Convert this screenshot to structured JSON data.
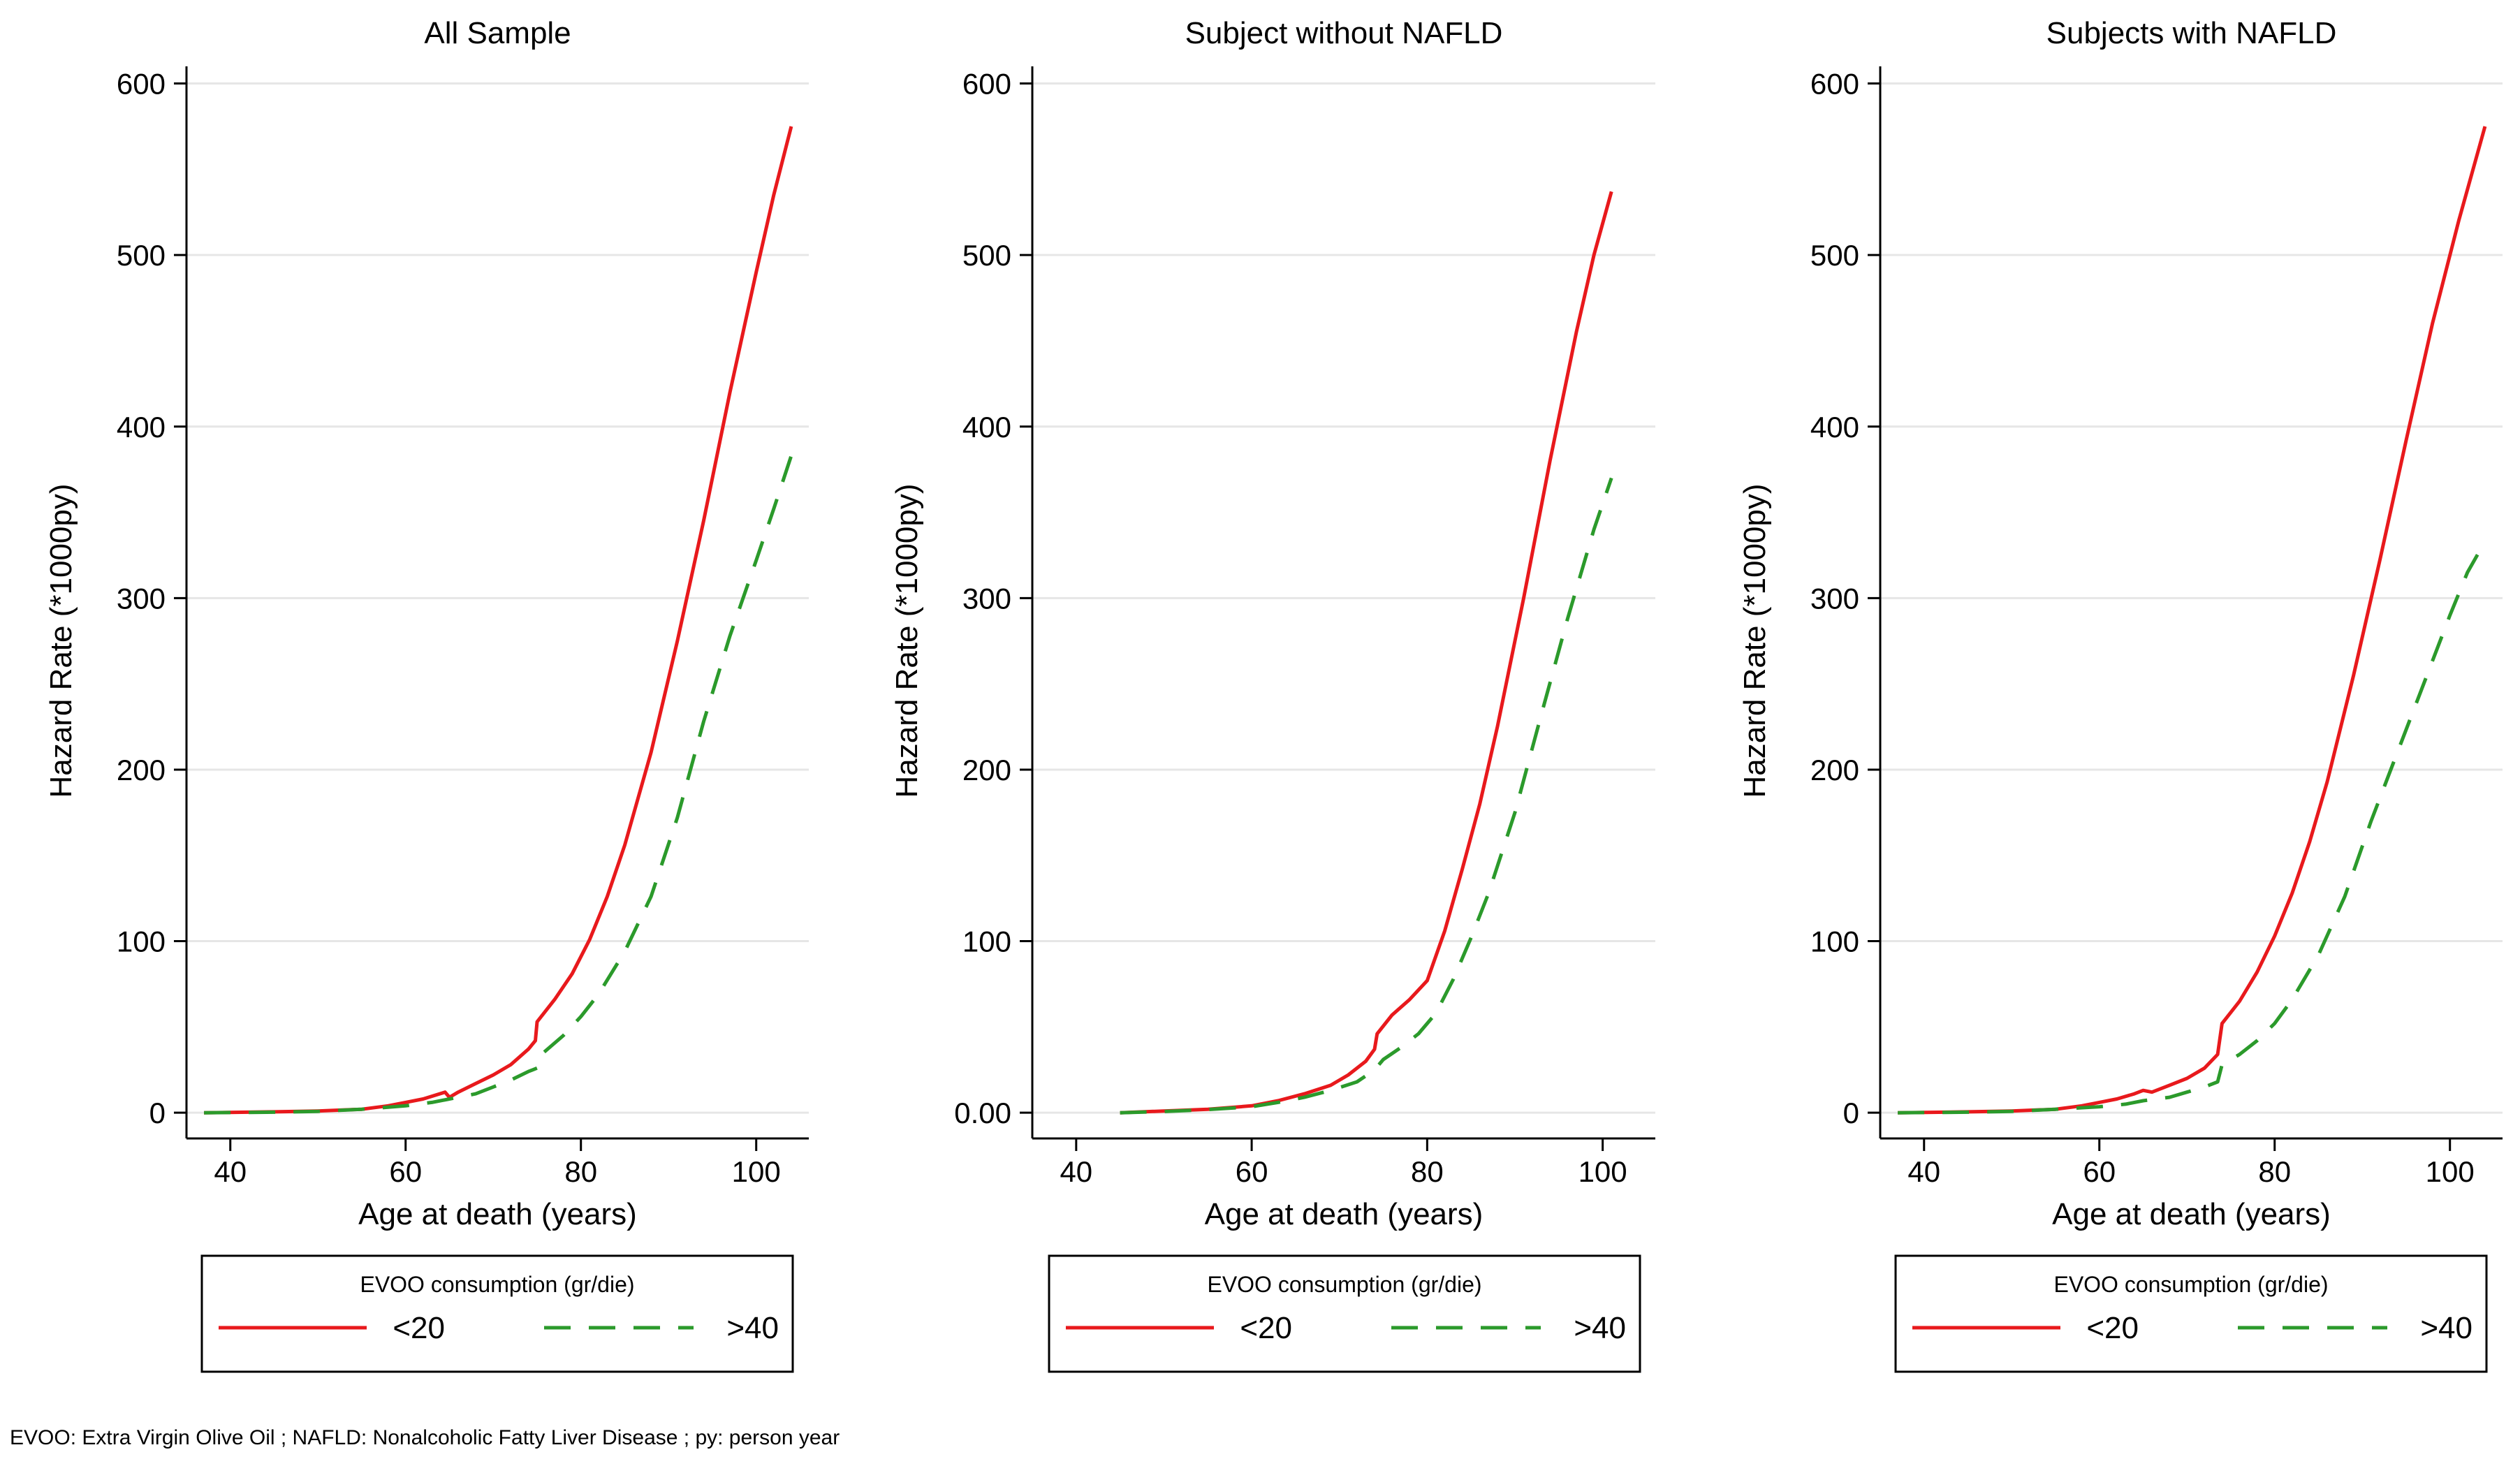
{
  "footnote": "EVOO: Extra Virgin Olive Oil ; NAFLD: Nonalcoholic Fatty Liver Disease ; py: person year",
  "colors": {
    "lt20": "#e8191c",
    "gt40": "#2b9a2b",
    "grid": "#e6e6e6",
    "axis": "#000000"
  },
  "chart_data": [
    {
      "type": "line",
      "title": "All Sample",
      "xlabel": "Age at death (years)",
      "ylabel": "Hazard Rate (*1000py)",
      "xlim": [
        35,
        106
      ],
      "ylim": [
        -15,
        610
      ],
      "xticks": [
        40,
        60,
        80,
        100
      ],
      "xtick_labels": [
        "40",
        "60",
        "80",
        "100"
      ],
      "yticks": [
        0,
        100,
        200,
        300,
        400,
        500,
        600
      ],
      "ytick_labels": [
        "0",
        "100",
        "200",
        "300",
        "400",
        "500",
        "600"
      ],
      "grid": true,
      "legend": {
        "title": "EVOO consumption (gr/die)",
        "position": "bottom"
      },
      "series": [
        {
          "name": "<20",
          "style": "solid",
          "x": [
            37,
            45,
            50,
            55,
            58,
            60,
            62,
            64.5,
            65,
            66,
            68,
            70,
            72,
            74,
            74.8,
            75,
            77,
            79,
            81,
            83,
            85,
            88,
            91,
            94,
            97,
            100,
            102,
            104
          ],
          "y": [
            0,
            0.5,
            1,
            2,
            4,
            6,
            8,
            12,
            9,
            12,
            17,
            22,
            28,
            37,
            42,
            53,
            66,
            81,
            101,
            126,
            156,
            210,
            275,
            345,
            420,
            490,
            535,
            575
          ]
        },
        {
          "name": ">40",
          "style": "dashed",
          "x": [
            37,
            45,
            50,
            55,
            60,
            63,
            65,
            68,
            70,
            72,
            74,
            75,
            75.5,
            78,
            80,
            82,
            85,
            88,
            91,
            94,
            97,
            100,
            102,
            104
          ],
          "y": [
            0,
            0.3,
            0.8,
            2,
            4,
            6,
            8,
            11,
            15,
            19,
            24,
            26,
            34,
            45,
            56,
            69,
            94,
            126,
            172,
            228,
            278,
            322,
            352,
            383
          ]
        }
      ]
    },
    {
      "type": "line",
      "title": "Subject  without NAFLD",
      "xlabel": "Age at death (years)",
      "ylabel": "Hazard Rate (*1000py)",
      "xlim": [
        35,
        106
      ],
      "ylim": [
        -15,
        610
      ],
      "xticks": [
        40,
        60,
        80,
        100
      ],
      "xtick_labels": [
        "40",
        "60",
        "80",
        "100"
      ],
      "yticks": [
        0,
        100,
        200,
        300,
        400,
        500,
        600
      ],
      "ytick_labels": [
        "0.00",
        "100",
        "200",
        "300",
        "400",
        "500",
        "600"
      ],
      "grid": true,
      "legend": {
        "title": "EVOO consumption (gr/die)",
        "position": "bottom"
      },
      "series": [
        {
          "name": "<20",
          "style": "solid",
          "x": [
            45,
            50,
            55,
            60,
            63,
            66,
            69,
            71,
            73,
            74,
            74.3,
            76,
            78,
            80,
            82,
            84,
            86,
            88,
            91,
            94,
            97,
            99,
            101
          ],
          "y": [
            0,
            1,
            2,
            4,
            7,
            11,
            16,
            22,
            30,
            37,
            46,
            57,
            66,
            77,
            106,
            142,
            180,
            225,
            300,
            380,
            455,
            500,
            537
          ]
        },
        {
          "name": ">40",
          "style": "dashed",
          "x": [
            45,
            50,
            55,
            60,
            63,
            66,
            69,
            72,
            74,
            75,
            77,
            79,
            81,
            83,
            85,
            87,
            90,
            93,
            96,
            99,
            101
          ],
          "y": [
            0,
            0.7,
            1.8,
            3.5,
            6,
            9,
            13,
            18,
            25,
            31,
            38,
            46,
            58,
            78,
            102,
            128,
            175,
            232,
            288,
            340,
            370
          ]
        }
      ]
    },
    {
      "type": "line",
      "title": "Subjects with NAFLD",
      "xlabel": "Age at death (years)",
      "ylabel": "Hazard Rate (*1000py)",
      "xlim": [
        35,
        106
      ],
      "ylim": [
        -15,
        610
      ],
      "xticks": [
        40,
        60,
        80,
        100
      ],
      "xtick_labels": [
        "40",
        "60",
        "80",
        "100"
      ],
      "yticks": [
        0,
        100,
        200,
        300,
        400,
        500,
        600
      ],
      "ytick_labels": [
        "0",
        "100",
        "200",
        "300",
        "400",
        "500",
        "600"
      ],
      "grid": true,
      "legend": {
        "title": "EVOO consumption (gr/die)",
        "position": "bottom"
      },
      "series": [
        {
          "name": "<20",
          "style": "solid",
          "x": [
            37,
            45,
            50,
            55,
            58,
            60,
            62,
            64,
            65,
            66,
            68,
            70,
            72,
            73.5,
            74,
            76,
            78,
            80,
            82,
            84,
            86,
            89,
            92,
            95,
            98,
            101,
            104
          ],
          "y": [
            0,
            0.5,
            1,
            2,
            4,
            6,
            8,
            11,
            13,
            12,
            16,
            20,
            26,
            34,
            52,
            65,
            82,
            103,
            128,
            158,
            193,
            255,
            322,
            392,
            460,
            520,
            575
          ]
        },
        {
          "name": ">40",
          "style": "dashed",
          "x": [
            37,
            45,
            50,
            55,
            60,
            63,
            65,
            68,
            70,
            72,
            73.5,
            74,
            76,
            78,
            80,
            82,
            85,
            88,
            91,
            94,
            97,
            100,
            102,
            104
          ],
          "y": [
            0,
            0.3,
            0.8,
            2,
            3.5,
            5,
            7,
            9,
            12,
            15,
            18,
            28,
            34,
            42,
            52,
            66,
            92,
            126,
            170,
            210,
            250,
            290,
            315,
            333
          ]
        }
      ]
    }
  ]
}
